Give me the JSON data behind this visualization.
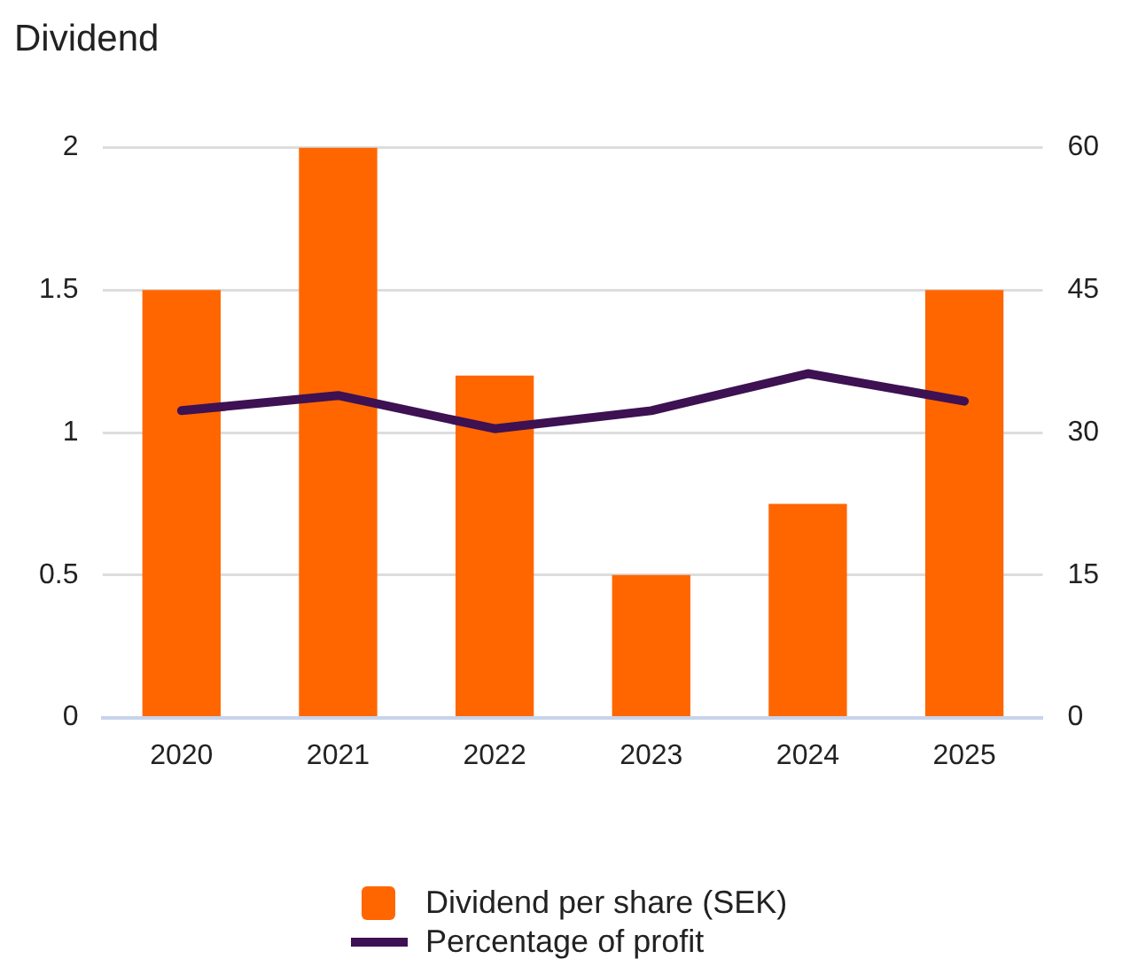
{
  "chart_data": {
    "type": "bar",
    "title": "Dividend",
    "categories": [
      "2020",
      "2021",
      "2022",
      "2023",
      "2024",
      "2025"
    ],
    "series": [
      {
        "name": "Dividend per share (SEK)",
        "color": "#ff6600",
        "values": [
          1.5,
          2,
          1.2,
          0.5,
          0.75,
          1.5
        ]
      },
      {
        "name": "Percentage of profit",
        "type": "line",
        "axis": "y2",
        "color": "#3d1152",
        "values": [
          32.3,
          33.9,
          30.4,
          32.3,
          36.2,
          33.3
        ]
      }
    ],
    "ylim": [
      0,
      2
    ],
    "yticks": [
      0,
      0.5,
      1,
      1.5,
      2
    ],
    "y2lim": [
      0,
      60
    ],
    "y2ticks": [
      0,
      15,
      30,
      45,
      60
    ],
    "grid": "y",
    "legend": "bottom",
    "marker": "none"
  }
}
